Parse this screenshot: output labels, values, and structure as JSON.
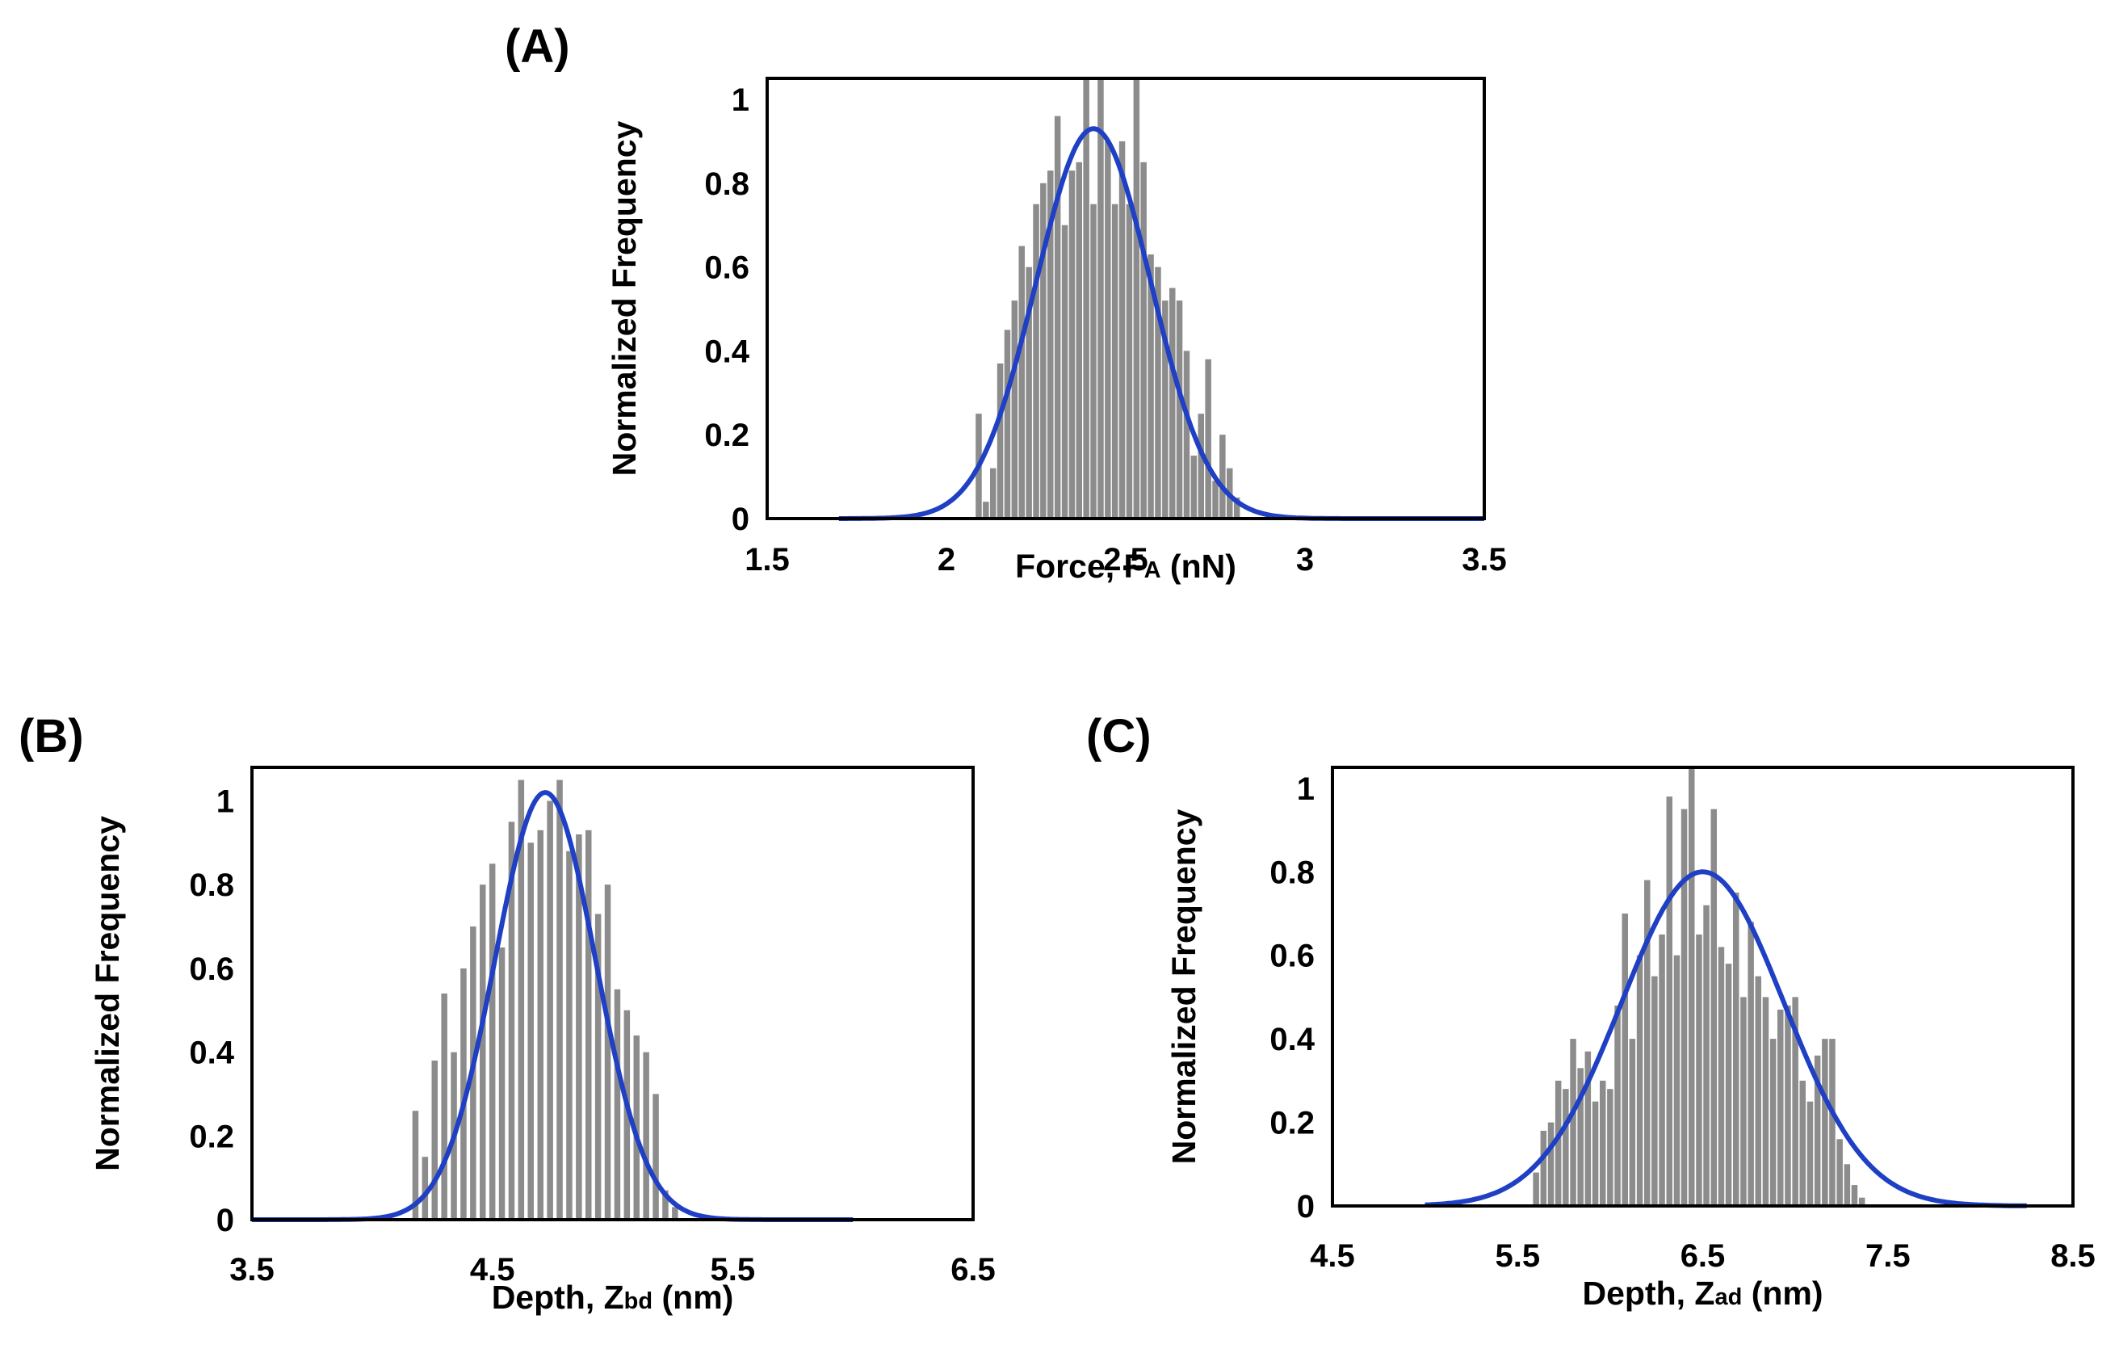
{
  "figure": {
    "colors": {
      "bar": "#8c8c8c",
      "fit": "#1f3fc4",
      "axis": "#000000",
      "background": "#ffffff"
    }
  },
  "chart_data": [
    {
      "id": "A",
      "panel_label": "(A)",
      "type": "bar",
      "overlay": "gaussian-fit",
      "title": "",
      "ylabel": "Normalized Frequency",
      "xlabel_prefix": "Force, F",
      "xlabel_sub": "A",
      "xlabel_suffix": " (nN)",
      "xlim": [
        1.5,
        3.5
      ],
      "ylim": [
        0,
        1.05
      ],
      "xticks": [
        1.5,
        2,
        2.5,
        3,
        3.5
      ],
      "xtick_labels": [
        "1.5",
        "2",
        "2.5",
        "3",
        "3.5"
      ],
      "yticks": [
        0,
        0.2,
        0.4,
        0.6,
        0.8,
        1
      ],
      "ytick_labels": [
        "0",
        "0.2",
        "0.4",
        "0.6",
        "0.8",
        "1"
      ],
      "bars": {
        "x": [
          2.09,
          2.11,
          2.13,
          2.15,
          2.17,
          2.19,
          2.21,
          2.23,
          2.25,
          2.27,
          2.29,
          2.31,
          2.33,
          2.35,
          2.37,
          2.39,
          2.41,
          2.43,
          2.45,
          2.47,
          2.49,
          2.51,
          2.53,
          2.55,
          2.57,
          2.59,
          2.61,
          2.63,
          2.65,
          2.67,
          2.69,
          2.71,
          2.73,
          2.75,
          2.77,
          2.79,
          2.81
        ],
        "values": [
          0.25,
          0.04,
          0.12,
          0.37,
          0.45,
          0.52,
          0.65,
          0.6,
          0.75,
          0.8,
          0.83,
          0.96,
          0.7,
          0.83,
          0.85,
          1.05,
          0.75,
          1.05,
          0.9,
          0.75,
          0.9,
          0.75,
          1.05,
          0.85,
          0.63,
          0.6,
          0.52,
          0.55,
          0.52,
          0.4,
          0.15,
          0.25,
          0.38,
          0.09,
          0.2,
          0.12,
          0.05
        ]
      },
      "fit": {
        "name": "Gaussian fit",
        "mean": 2.41,
        "sigma": 0.16,
        "amplitude": 0.93,
        "x_range": [
          1.7,
          3.5
        ]
      }
    },
    {
      "id": "B",
      "panel_label": "(B)",
      "type": "bar",
      "overlay": "gaussian-fit",
      "title": "",
      "ylabel": "Normalized Frequency",
      "xlabel_prefix": "Depth, Z",
      "xlabel_sub": "bd",
      "xlabel_suffix": " (nm)",
      "xlim": [
        3.5,
        6.5
      ],
      "ylim": [
        0,
        1.08
      ],
      "xticks": [
        3.5,
        4.5,
        5.5,
        6.5
      ],
      "xtick_labels": [
        "3.5",
        "4.5",
        "5.5",
        "6.5"
      ],
      "yticks": [
        0,
        0.2,
        0.4,
        0.6,
        0.8,
        1
      ],
      "ytick_labels": [
        "0",
        "0.2",
        "0.4",
        "0.6",
        "0.8",
        "1"
      ],
      "bars": {
        "x": [
          4.18,
          4.22,
          4.26,
          4.3,
          4.34,
          4.38,
          4.42,
          4.46,
          4.5,
          4.54,
          4.58,
          4.62,
          4.66,
          4.7,
          4.74,
          4.78,
          4.82,
          4.86,
          4.9,
          4.94,
          4.98,
          5.02,
          5.06,
          5.1,
          5.14,
          5.18,
          5.22,
          5.26
        ],
        "values": [
          0.26,
          0.15,
          0.38,
          0.54,
          0.4,
          0.6,
          0.7,
          0.8,
          0.85,
          0.65,
          0.95,
          1.05,
          0.9,
          0.93,
          1.0,
          1.05,
          0.88,
          0.92,
          0.93,
          0.73,
          0.8,
          0.55,
          0.5,
          0.44,
          0.4,
          0.3,
          0.07,
          0.03
        ]
      },
      "fit": {
        "name": "Gaussian fit",
        "mean": 4.72,
        "sigma": 0.21,
        "amplitude": 1.02,
        "x_range": [
          3.5,
          6.0
        ]
      }
    },
    {
      "id": "C",
      "panel_label": "(C)",
      "type": "bar",
      "overlay": "gaussian-fit",
      "title": "",
      "ylabel": "Normalized Frequency",
      "xlabel_prefix": "Depth, Z",
      "xlabel_sub": "ad",
      "xlabel_suffix": " (nm)",
      "xlim": [
        4.5,
        8.5
      ],
      "ylim": [
        0,
        1.05
      ],
      "xticks": [
        4.5,
        5.5,
        6.5,
        7.5,
        8.5
      ],
      "xtick_labels": [
        "4.5",
        "5.5",
        "6.5",
        "7.5",
        "8.5"
      ],
      "yticks": [
        0,
        0.2,
        0.4,
        0.6,
        0.8,
        1
      ],
      "ytick_labels": [
        "0",
        "0.2",
        "0.4",
        "0.6",
        "0.8",
        "1"
      ],
      "bars": {
        "x": [
          5.6,
          5.64,
          5.68,
          5.72,
          5.76,
          5.8,
          5.84,
          5.88,
          5.92,
          5.96,
          6.0,
          6.04,
          6.08,
          6.12,
          6.16,
          6.2,
          6.24,
          6.28,
          6.32,
          6.36,
          6.4,
          6.44,
          6.48,
          6.52,
          6.56,
          6.6,
          6.64,
          6.68,
          6.72,
          6.76,
          6.8,
          6.84,
          6.88,
          6.92,
          6.96,
          7.0,
          7.04,
          7.08,
          7.12,
          7.16,
          7.2,
          7.24,
          7.28,
          7.32,
          7.36
        ],
        "values": [
          0.08,
          0.18,
          0.2,
          0.3,
          0.28,
          0.4,
          0.33,
          0.37,
          0.25,
          0.3,
          0.28,
          0.48,
          0.7,
          0.4,
          0.6,
          0.78,
          0.55,
          0.65,
          0.98,
          0.6,
          0.95,
          1.05,
          0.65,
          0.72,
          0.95,
          0.62,
          0.58,
          0.75,
          0.5,
          0.68,
          0.55,
          0.5,
          0.4,
          0.47,
          0.48,
          0.5,
          0.3,
          0.25,
          0.36,
          0.4,
          0.4,
          0.16,
          0.1,
          0.05,
          0.02
        ]
      },
      "fit": {
        "name": "Gaussian fit",
        "mean": 6.5,
        "sigma": 0.44,
        "amplitude": 0.8,
        "x_range": [
          5.0,
          8.25
        ]
      }
    }
  ]
}
